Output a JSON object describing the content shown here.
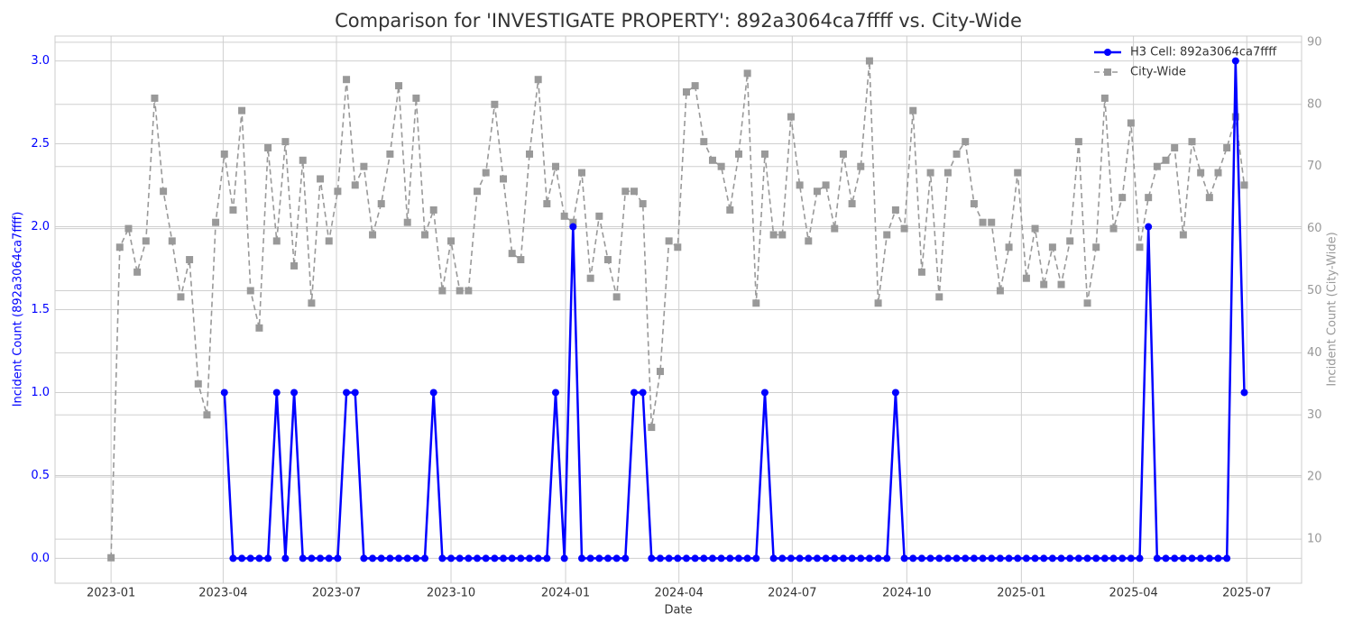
{
  "chart_data": {
    "type": "line",
    "title": "Comparison for 'INVESTIGATE PROPERTY': 892a3064ca7ffff vs. City-Wide",
    "x_label": "Date",
    "y_label": "Incident Count (892a3064ca7ffff)",
    "y2_label": "Incident Count (City-Wide)",
    "x": [
      "2023-01-01",
      "2023-01-08",
      "2023-01-15",
      "2023-01-22",
      "2023-01-29",
      "2023-02-05",
      "2023-02-12",
      "2023-02-19",
      "2023-02-26",
      "2023-03-05",
      "2023-03-12",
      "2023-03-19",
      "2023-03-26",
      "2023-04-02",
      "2023-04-09",
      "2023-04-16",
      "2023-04-23",
      "2023-04-30",
      "2023-05-07",
      "2023-05-14",
      "2023-05-21",
      "2023-05-28",
      "2023-06-04",
      "2023-06-11",
      "2023-06-18",
      "2023-06-25",
      "2023-07-02",
      "2023-07-09",
      "2023-07-16",
      "2023-07-23",
      "2023-07-30",
      "2023-08-06",
      "2023-08-13",
      "2023-08-20",
      "2023-08-27",
      "2023-09-03",
      "2023-09-10",
      "2023-09-17",
      "2023-09-24",
      "2023-10-01",
      "2023-10-08",
      "2023-10-15",
      "2023-10-22",
      "2023-10-29",
      "2023-11-05",
      "2023-11-12",
      "2023-11-19",
      "2023-11-26",
      "2023-12-03",
      "2023-12-10",
      "2023-12-17",
      "2023-12-24",
      "2023-12-31",
      "2024-01-07",
      "2024-01-14",
      "2024-01-21",
      "2024-01-28",
      "2024-02-04",
      "2024-02-11",
      "2024-02-18",
      "2024-02-25",
      "2024-03-03",
      "2024-03-10",
      "2024-03-17",
      "2024-03-24",
      "2024-03-31",
      "2024-04-07",
      "2024-04-14",
      "2024-04-21",
      "2024-04-28",
      "2024-05-05",
      "2024-05-12",
      "2024-05-19",
      "2024-05-26",
      "2024-06-02",
      "2024-06-09",
      "2024-06-16",
      "2024-06-23",
      "2024-06-30",
      "2024-07-07",
      "2024-07-14",
      "2024-07-21",
      "2024-07-28",
      "2024-08-04",
      "2024-08-11",
      "2024-08-18",
      "2024-08-25",
      "2024-09-01",
      "2024-09-08",
      "2024-09-15",
      "2024-09-22",
      "2024-09-29",
      "2024-10-06",
      "2024-10-13",
      "2024-10-20",
      "2024-10-27",
      "2024-11-03",
      "2024-11-10",
      "2024-11-17",
      "2024-11-24",
      "2024-12-01",
      "2024-12-08",
      "2024-12-15",
      "2024-12-22",
      "2024-12-29",
      "2025-01-05",
      "2025-01-12",
      "2025-01-19",
      "2025-01-26",
      "2025-02-02",
      "2025-02-09",
      "2025-02-16",
      "2025-02-23",
      "2025-03-02",
      "2025-03-09",
      "2025-03-16",
      "2025-03-23",
      "2025-03-30",
      "2025-04-06",
      "2025-04-13",
      "2025-04-20",
      "2025-04-27",
      "2025-05-04",
      "2025-05-11",
      "2025-05-18",
      "2025-05-25",
      "2025-06-01",
      "2025-06-08",
      "2025-06-15",
      "2025-06-22",
      "2025-06-29"
    ],
    "series": [
      {
        "name": "H3 Cell: 892a3064ca7ffff",
        "color": "#0000ff",
        "marker": "circle",
        "dash": false,
        "axis": "y",
        "values": [
          null,
          null,
          null,
          null,
          null,
          null,
          null,
          null,
          null,
          null,
          null,
          null,
          null,
          1,
          0,
          0,
          0,
          0,
          0,
          1,
          0,
          1,
          0,
          0,
          0,
          0,
          0,
          1,
          1,
          0,
          0,
          0,
          0,
          0,
          0,
          0,
          0,
          1,
          0,
          0,
          0,
          0,
          0,
          0,
          0,
          0,
          0,
          0,
          0,
          0,
          0,
          1,
          0,
          2,
          0,
          0,
          0,
          0,
          0,
          0,
          1,
          1,
          0,
          0,
          0,
          0,
          0,
          0,
          0,
          0,
          0,
          0,
          0,
          0,
          0,
          1,
          0,
          0,
          0,
          0,
          0,
          0,
          0,
          0,
          0,
          0,
          0,
          0,
          0,
          0,
          1,
          0,
          0,
          0,
          0,
          0,
          0,
          0,
          0,
          0,
          0,
          0,
          0,
          0,
          0,
          0,
          0,
          0,
          0,
          0,
          0,
          0,
          0,
          0,
          0,
          0,
          0,
          0,
          0,
          2,
          0,
          0,
          0,
          0,
          0,
          0,
          0,
          0,
          0,
          3,
          1
        ]
      },
      {
        "name": "City-Wide",
        "color": "#999999",
        "marker": "square",
        "dash": true,
        "axis": "y2",
        "values": [
          7,
          57,
          60,
          53,
          58,
          81,
          66,
          58,
          49,
          55,
          35,
          30,
          61,
          72,
          63,
          79,
          50,
          44,
          73,
          58,
          74,
          54,
          71,
          48,
          68,
          58,
          66,
          84,
          67,
          70,
          59,
          64,
          72,
          83,
          61,
          81,
          59,
          63,
          50,
          58,
          50,
          50,
          66,
          69,
          80,
          68,
          56,
          55,
          72,
          84,
          64,
          70,
          62,
          61,
          69,
          52,
          62,
          55,
          49,
          66,
          66,
          64,
          28,
          37,
          58,
          57,
          82,
          83,
          74,
          71,
          70,
          63,
          72,
          85,
          48,
          72,
          59,
          59,
          78,
          67,
          58,
          66,
          67,
          60,
          72,
          64,
          70,
          87,
          48,
          59,
          63,
          60,
          79,
          53,
          69,
          49,
          69,
          72,
          74,
          64,
          61,
          61,
          50,
          57,
          69,
          52,
          60,
          51,
          57,
          51,
          58,
          74,
          48,
          57,
          81,
          60,
          65,
          77,
          57,
          65,
          70,
          71,
          73,
          59,
          74,
          69,
          65,
          69,
          73,
          78,
          67
        ]
      }
    ],
    "xlim": [
      "2022-11-17",
      "2025-08-14"
    ],
    "xticks": [
      "2023-01",
      "2023-04",
      "2023-07",
      "2023-10",
      "2024-01",
      "2024-04",
      "2024-07",
      "2024-10",
      "2025-01",
      "2025-04",
      "2025-07"
    ],
    "ylim": [
      -0.15,
      3.15
    ],
    "yticks": [
      {
        "value": 0,
        "label": "0.0"
      },
      0.5,
      {
        "value": 1,
        "label": "1.0"
      },
      1.5,
      {
        "value": 2,
        "label": "2.0"
      },
      2.5,
      {
        "value": 3,
        "label": "3.0"
      }
    ],
    "y2lim": [
      2.9,
      91
    ],
    "y2ticks": [
      10,
      20,
      30,
      40,
      50,
      60,
      70,
      80,
      90
    ],
    "grid": true,
    "legend": "upper right"
  }
}
